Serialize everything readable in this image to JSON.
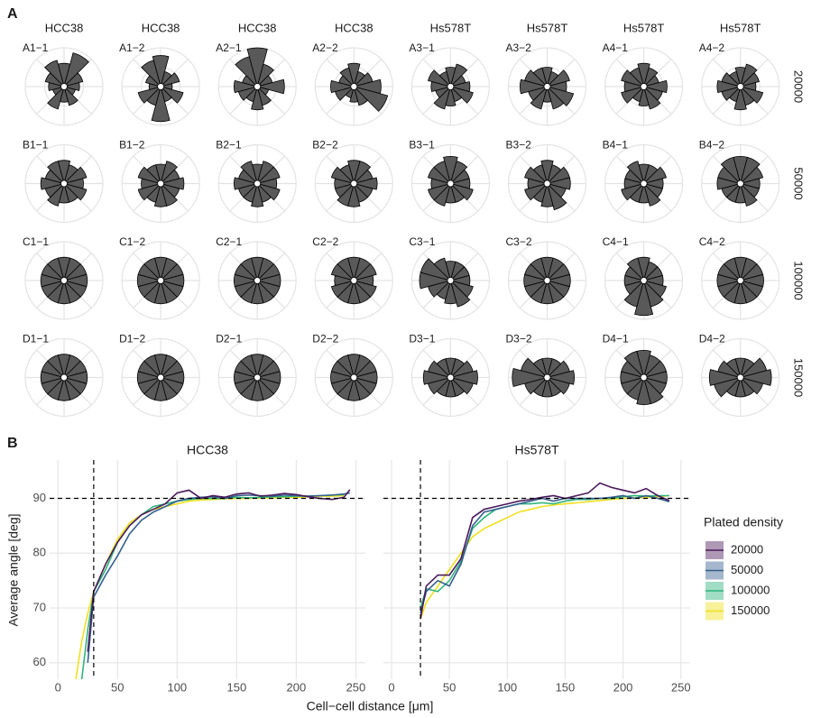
{
  "chart_data": [
    {
      "type": "rose-grid",
      "panel_label": "A",
      "rlim": [
        0,
        10
      ],
      "column_labels": [
        "HCC38",
        "HCC38",
        "HCC38",
        "HCC38",
        "Hs578T",
        "Hs578T",
        "Hs578T",
        "Hs578T"
      ],
      "row_labels": [
        "20000",
        "50000",
        "100000",
        "150000"
      ],
      "plots": [
        {
          "label": "A1−1",
          "values": [
            6,
            9,
            5,
            4,
            3,
            5,
            4,
            6,
            3,
            4,
            5,
            7
          ]
        },
        {
          "label": "A1−2",
          "values": [
            8,
            4,
            5,
            3,
            6,
            4,
            9,
            5,
            6,
            3,
            4,
            7
          ]
        },
        {
          "label": "A2−1",
          "values": [
            10,
            6,
            4,
            7,
            3,
            5,
            6,
            4,
            5,
            6,
            4,
            8
          ]
        },
        {
          "label": "A2−2",
          "values": [
            6,
            4,
            5,
            7,
            9,
            5,
            4,
            3,
            5,
            6,
            4,
            5
          ]
        },
        {
          "label": "A3−1",
          "values": [
            5,
            6,
            4,
            5,
            6,
            4,
            5,
            6,
            4,
            5,
            6,
            4
          ]
        },
        {
          "label": "A3−2",
          "values": [
            5,
            4,
            6,
            5,
            7,
            6,
            4,
            6,
            5,
            7,
            6,
            5
          ]
        },
        {
          "label": "A4−1",
          "values": [
            6,
            5,
            4,
            6,
            5,
            6,
            5,
            4,
            6,
            5,
            6,
            5
          ]
        },
        {
          "label": "A4−2",
          "values": [
            5,
            6,
            5,
            4,
            6,
            5,
            6,
            4,
            5,
            6,
            5,
            4
          ]
        },
        {
          "label": "B1−1",
          "values": [
            6,
            5,
            6,
            5,
            6,
            5,
            5,
            6,
            5,
            6,
            5,
            6
          ]
        },
        {
          "label": "B1−2",
          "values": [
            5,
            6,
            5,
            6,
            5,
            6,
            6,
            5,
            6,
            5,
            6,
            5
          ]
        },
        {
          "label": "B2−1",
          "values": [
            5,
            6,
            6,
            5,
            6,
            5,
            6,
            5,
            5,
            6,
            5,
            6
          ]
        },
        {
          "label": "B2−2",
          "values": [
            6,
            6,
            5,
            6,
            5,
            5,
            6,
            6,
            5,
            5,
            6,
            5
          ]
        },
        {
          "label": "B3−1",
          "values": [
            7,
            6,
            5,
            5,
            6,
            5,
            5,
            6,
            6,
            5,
            6,
            6
          ]
        },
        {
          "label": "B3−2",
          "values": [
            6,
            5,
            6,
            6,
            5,
            7,
            6,
            5,
            6,
            5,
            6,
            5
          ]
        },
        {
          "label": "B4−1",
          "values": [
            5,
            5,
            6,
            5,
            5,
            6,
            5,
            5,
            6,
            5,
            5,
            6
          ]
        },
        {
          "label": "B4−2",
          "values": [
            7,
            7,
            6,
            5,
            5,
            6,
            5,
            5,
            5,
            6,
            6,
            7
          ]
        },
        {
          "label": "C1−1",
          "values": [
            6,
            6,
            6,
            6,
            6,
            6,
            6,
            6,
            6,
            6,
            6,
            6
          ]
        },
        {
          "label": "C1−2",
          "values": [
            6,
            6,
            6,
            6,
            6,
            6,
            6,
            6,
            6,
            6,
            6,
            6
          ]
        },
        {
          "label": "C2−1",
          "values": [
            6,
            6,
            6,
            6,
            6,
            6,
            6,
            6,
            6,
            6,
            6,
            6
          ]
        },
        {
          "label": "C2−2",
          "values": [
            6,
            6,
            6,
            5,
            6,
            6,
            6,
            6,
            6,
            5,
            6,
            6
          ]
        },
        {
          "label": "C3−1",
          "values": [
            5,
            5,
            5,
            5,
            6,
            7,
            6,
            5,
            6,
            8,
            8,
            6
          ]
        },
        {
          "label": "C3−2",
          "values": [
            6,
            6,
            6,
            6,
            6,
            6,
            6,
            6,
            6,
            6,
            6,
            6
          ]
        },
        {
          "label": "C4−1",
          "values": [
            6,
            5,
            5,
            5,
            6,
            7,
            9,
            7,
            5,
            5,
            5,
            6
          ]
        },
        {
          "label": "C4−2",
          "values": [
            6,
            6,
            6,
            6,
            6,
            6,
            6,
            6,
            6,
            6,
            6,
            6
          ]
        },
        {
          "label": "D1−1",
          "values": [
            6,
            6,
            6,
            6,
            6,
            6,
            6,
            6,
            6,
            6,
            6,
            6
          ]
        },
        {
          "label": "D1−2",
          "values": [
            6,
            6,
            6,
            6,
            6,
            6,
            6,
            6,
            6,
            6,
            6,
            6
          ]
        },
        {
          "label": "D2−1",
          "values": [
            6,
            6,
            6,
            6,
            6,
            6,
            6,
            6,
            6,
            6,
            6,
            6
          ]
        },
        {
          "label": "D2−2",
          "values": [
            6,
            6,
            6,
            6,
            6,
            6,
            6,
            6,
            6,
            6,
            6,
            6
          ]
        },
        {
          "label": "D3−1",
          "values": [
            5,
            5,
            6,
            7,
            6,
            5,
            5,
            5,
            6,
            7,
            6,
            5
          ]
        },
        {
          "label": "D3−2",
          "values": [
            5,
            5,
            6,
            7,
            6,
            5,
            5,
            5,
            6,
            9,
            7,
            5
          ]
        },
        {
          "label": "D4−1",
          "values": [
            7,
            6,
            6,
            6,
            6,
            7,
            7,
            6,
            6,
            6,
            6,
            7
          ]
        },
        {
          "label": "D4−2",
          "values": [
            5,
            5,
            7,
            8,
            6,
            5,
            5,
            5,
            7,
            8,
            6,
            5
          ]
        }
      ]
    },
    {
      "type": "line",
      "panel_label": "B",
      "xlabel": "Cell−cell distance [μm]",
      "ylabel": "Average angle [deg]",
      "legend_title": "Plated density",
      "legend": "right",
      "xlim": [
        -7,
        258
      ],
      "xticks": [
        0,
        50,
        100,
        150,
        200,
        250
      ],
      "ylim": [
        57,
        97
      ],
      "yticks": [
        60,
        70,
        80,
        90
      ],
      "grid": true,
      "hline": 90,
      "facets": [
        {
          "title": "HCC38",
          "vline": 30,
          "x": [
            15,
            20,
            25,
            30,
            40,
            50,
            60,
            70,
            80,
            90,
            100,
            110,
            120,
            130,
            140,
            150,
            160,
            170,
            180,
            190,
            200,
            210,
            220,
            230,
            240,
            245
          ],
          "series": [
            {
              "name": "20000",
              "color": "#4b1a5c",
              "values": [
                null,
                null,
                62,
                73,
                78,
                82,
                85,
                87,
                88,
                89,
                91,
                91.5,
                90,
                90.5,
                90.2,
                90.8,
                91,
                90.4,
                90.6,
                90.9,
                90.7,
                90.3,
                90,
                89.8,
                90.2,
                91.6
              ]
            },
            {
              "name": "50000",
              "color": "#35608d",
              "values": [
                null,
                null,
                60,
                72,
                76,
                79.5,
                83.5,
                86,
                87.5,
                88.5,
                89.5,
                90,
                90.2,
                90.3,
                90,
                90.5,
                90.6,
                90.5,
                90.4,
                90.6,
                90.5,
                90.4,
                90.5,
                90.6,
                90.8,
                91
              ]
            },
            {
              "name": "100000",
              "color": "#2fb47c",
              "values": [
                null,
                57,
                66,
                73,
                77,
                82,
                85,
                87,
                88.5,
                89,
                89.5,
                89.8,
                90,
                90,
                90,
                90.2,
                90.1,
                90.2,
                90.3,
                90.3,
                90.4,
                90.4,
                90.5,
                90.6,
                90.7,
                null
              ]
            },
            {
              "name": "150000",
              "color": "#f0e01e",
              "values": [
                57,
                64,
                69,
                73,
                78,
                82.5,
                85.5,
                87,
                88,
                88.5,
                89,
                89.5,
                89.7,
                89.8,
                89.9,
                90,
                90,
                90.1,
                90.1,
                90.2,
                90.2,
                90.3,
                90.4,
                90.4,
                90.5,
                null
              ]
            }
          ]
        },
        {
          "title": "Hs578T",
          "vline": 25,
          "x": [
            15,
            20,
            25,
            30,
            40,
            50,
            60,
            70,
            80,
            90,
            100,
            110,
            120,
            130,
            140,
            150,
            160,
            170,
            180,
            190,
            200,
            210,
            220,
            230,
            240,
            245
          ],
          "series": [
            {
              "name": "20000",
              "color": "#4b1a5c",
              "values": [
                null,
                null,
                68,
                74,
                76,
                76,
                79,
                86.5,
                88,
                88.5,
                89,
                89.5,
                89.8,
                90.2,
                90.5,
                90,
                90.5,
                91,
                92.8,
                92,
                91.5,
                91,
                91.8,
                90.5,
                89.6,
                null
              ]
            },
            {
              "name": "50000",
              "color": "#35608d",
              "values": [
                null,
                null,
                69,
                73,
                75,
                74,
                78,
                85,
                87.5,
                88,
                88.5,
                89,
                89.5,
                90,
                89.5,
                90,
                90,
                90,
                90,
                90.2,
                90.5,
                90,
                90.5,
                90,
                89.4,
                null
              ]
            },
            {
              "name": "100000",
              "color": "#2fb47c",
              "values": [
                null,
                null,
                70,
                73.5,
                73,
                75,
                78.5,
                84.5,
                86.5,
                88,
                88.5,
                89,
                89,
                89.2,
                89,
                89.5,
                89.8,
                89.8,
                90,
                90,
                90.3,
                90.5,
                90.4,
                90.5,
                90.5,
                null
              ]
            },
            {
              "name": "150000",
              "color": "#f0e01e",
              "values": [
                null,
                null,
                68,
                71,
                74,
                77,
                80,
                83,
                84.5,
                85.5,
                86.5,
                87.5,
                88,
                88.5,
                88.8,
                89,
                89.2,
                89.4,
                89.6,
                89.8,
                90,
                90.1,
                90.2,
                90.3,
                90.5,
                null
              ]
            }
          ]
        }
      ]
    }
  ]
}
